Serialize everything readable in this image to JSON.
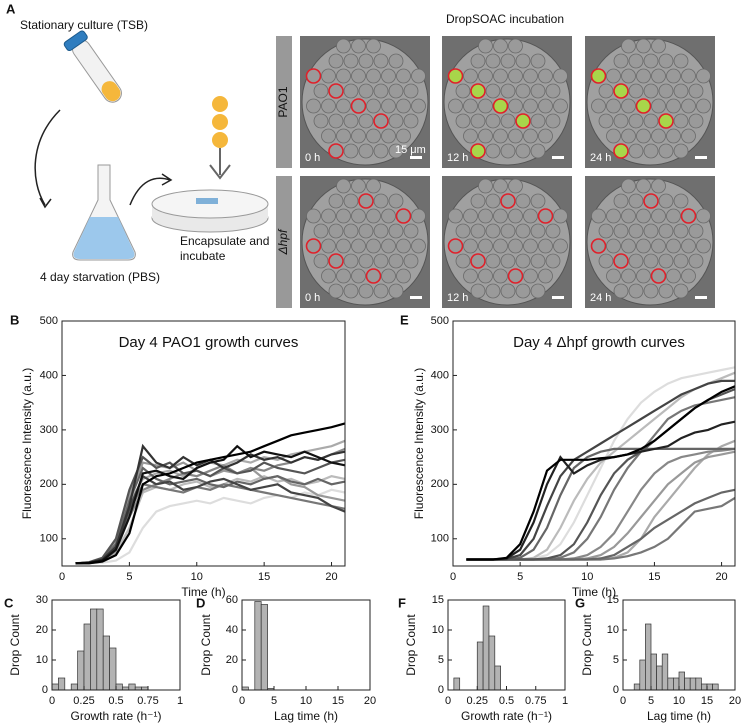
{
  "figure": {
    "panel_a": "A",
    "tube_label": "Stationary culture (TSB)",
    "flask_label": "4 day starvation (PBS)",
    "dish_label_1": "Encapsulate and",
    "dish_label_2": "incubate",
    "micrograph_title": "DropSOAC incubation",
    "rows": [
      "PAO1",
      "Δhpf"
    ],
    "times": [
      "0 h",
      "12 h",
      "24 h"
    ],
    "scale_bar": "15 μm"
  },
  "chart_data": [
    {
      "type": "line",
      "panel": "B",
      "title": "Day 4 PAO1 growth curves",
      "xlabel": "Time (h)",
      "ylabel": "Fluorescence Intensity (a.u.)",
      "x": [
        1,
        2,
        3,
        4,
        5,
        6,
        7,
        8,
        9,
        10,
        11,
        12,
        13,
        14,
        15,
        16,
        17,
        18,
        19,
        20,
        21
      ],
      "xlim": [
        0,
        21
      ],
      "xticks": [
        0,
        5,
        10,
        15,
        20
      ],
      "ylim": [
        50,
        500
      ],
      "yticks": [
        100,
        200,
        300,
        400,
        500
      ],
      "series": [
        {
          "color": "#ddd",
          "values": [
            55,
            55,
            56,
            60,
            75,
            120,
            150,
            160,
            165,
            170,
            165,
            175,
            170,
            165,
            175,
            180,
            175,
            185,
            180,
            190,
            185
          ]
        },
        {
          "color": "#bbb",
          "values": [
            55,
            55,
            58,
            75,
            120,
            185,
            195,
            190,
            200,
            205,
            195,
            200,
            210,
            205,
            215,
            205,
            210,
            200,
            205,
            215,
            210
          ]
        },
        {
          "color": "#aaa",
          "values": [
            55,
            56,
            62,
            88,
            165,
            210,
            220,
            225,
            215,
            230,
            240,
            235,
            245,
            240,
            250,
            245,
            255,
            260,
            265,
            270,
            280
          ]
        },
        {
          "color": "#999",
          "values": [
            55,
            56,
            63,
            95,
            180,
            240,
            235,
            230,
            240,
            225,
            215,
            225,
            220,
            230,
            210,
            215,
            200,
            195,
            180,
            175,
            170
          ]
        },
        {
          "color": "#888",
          "values": [
            55,
            55,
            59,
            78,
            140,
            190,
            200,
            210,
            220,
            215,
            225,
            235,
            220,
            230,
            225,
            235,
            240,
            250,
            245,
            255,
            265
          ]
        },
        {
          "color": "#777",
          "values": [
            55,
            56,
            60,
            80,
            150,
            200,
            195,
            190,
            185,
            195,
            190,
            200,
            195,
            190,
            185,
            180,
            175,
            170,
            165,
            160,
            155
          ]
        },
        {
          "color": "#666",
          "values": [
            55,
            56,
            64,
            90,
            170,
            230,
            210,
            200,
            205,
            210,
            200,
            195,
            205,
            200,
            210,
            215,
            205,
            200,
            210,
            200,
            205
          ]
        },
        {
          "color": "#555",
          "values": [
            55,
            57,
            65,
            100,
            190,
            250,
            230,
            240,
            220,
            225,
            215,
            230,
            220,
            225,
            240,
            230,
            225,
            220,
            230,
            240,
            245
          ]
        },
        {
          "color": "#444",
          "values": [
            55,
            56,
            61,
            84,
            155,
            215,
            200,
            205,
            190,
            195,
            205,
            210,
            200,
            190,
            195,
            200,
            185,
            180,
            175,
            160,
            150
          ]
        },
        {
          "color": "#333",
          "values": [
            55,
            56,
            62,
            85,
            160,
            270,
            240,
            230,
            250,
            235,
            245,
            230,
            240,
            255,
            245,
            250,
            240,
            250,
            245,
            255,
            260
          ]
        },
        {
          "color": "#111",
          "values": [
            55,
            56,
            60,
            80,
            140,
            220,
            225,
            215,
            210,
            230,
            240,
            245,
            270,
            250,
            260,
            255,
            250,
            260,
            250,
            240,
            235
          ]
        },
        {
          "color": "#000",
          "values": [
            55,
            55,
            58,
            70,
            110,
            200,
            215,
            220,
            230,
            240,
            245,
            250,
            255,
            260,
            270,
            280,
            290,
            295,
            300,
            305,
            312
          ]
        }
      ]
    },
    {
      "type": "line",
      "panel": "E",
      "title": "Day 4 Δhpf growth curves",
      "xlabel": "Time (h)",
      "ylabel": "Fluorescence Intensity (a.u.)",
      "x": [
        1,
        2,
        3,
        4,
        5,
        6,
        7,
        8,
        9,
        10,
        11,
        12,
        13,
        14,
        15,
        16,
        17,
        18,
        19,
        20,
        21
      ],
      "xlim": [
        0,
        21
      ],
      "xticks": [
        0,
        5,
        10,
        15,
        20
      ],
      "ylim": [
        50,
        500
      ],
      "yticks": [
        100,
        200,
        300,
        400,
        500
      ],
      "series": [
        {
          "color": "#ddd",
          "values": [
            62,
            62,
            62,
            62,
            62,
            64,
            70,
            90,
            130,
            180,
            230,
            280,
            320,
            350,
            370,
            385,
            395,
            400,
            405,
            410,
            415
          ]
        },
        {
          "color": "#bbb",
          "values": [
            62,
            62,
            62,
            62,
            62,
            65,
            80,
            120,
            170,
            210,
            240,
            260,
            280,
            300,
            320,
            340,
            360,
            375,
            385,
            395,
            405
          ]
        },
        {
          "color": "#aaa",
          "values": [
            62,
            62,
            62,
            62,
            62,
            62,
            62,
            62,
            62,
            62,
            62,
            65,
            75,
            100,
            140,
            170,
            200,
            230,
            255,
            270,
            280
          ]
        },
        {
          "color": "#999",
          "values": [
            62,
            62,
            62,
            62,
            62,
            62,
            62,
            62,
            62,
            64,
            70,
            85,
            110,
            140,
            170,
            200,
            220,
            240,
            250,
            255,
            260
          ]
        },
        {
          "color": "#888",
          "values": [
            62,
            62,
            62,
            62,
            62,
            62,
            62,
            62,
            64,
            70,
            85,
            110,
            150,
            190,
            220,
            240,
            250,
            255,
            260,
            262,
            265
          ]
        },
        {
          "color": "#777",
          "values": [
            62,
            62,
            62,
            62,
            62,
            62,
            62,
            65,
            75,
            100,
            140,
            190,
            230,
            260,
            290,
            320,
            335,
            345,
            350,
            355,
            360
          ]
        },
        {
          "color": "#777",
          "values": [
            62,
            62,
            62,
            62,
            62,
            62,
            62,
            62,
            62,
            62,
            62,
            64,
            68,
            75,
            85,
            100,
            125,
            150,
            155,
            160,
            175
          ]
        },
        {
          "color": "#666",
          "values": [
            62,
            62,
            62,
            62,
            62,
            62,
            62,
            62,
            62,
            62,
            64,
            70,
            85,
            100,
            120,
            135,
            150,
            165,
            175,
            185,
            190
          ]
        },
        {
          "color": "#666",
          "values": [
            62,
            62,
            62,
            62,
            65,
            80,
            120,
            180,
            230,
            250,
            260,
            265,
            265,
            265,
            265,
            265,
            265,
            265,
            265,
            265,
            265
          ]
        },
        {
          "color": "#555",
          "values": [
            62,
            62,
            62,
            62,
            62,
            62,
            64,
            70,
            90,
            130,
            180,
            220,
            245,
            260,
            280,
            300,
            320,
            340,
            355,
            365,
            375
          ]
        },
        {
          "color": "#444",
          "values": [
            62,
            62,
            62,
            63,
            70,
            100,
            160,
            215,
            245,
            260,
            275,
            290,
            305,
            320,
            335,
            350,
            365,
            375,
            385,
            390,
            390
          ]
        },
        {
          "color": "#222",
          "values": [
            62,
            62,
            62,
            64,
            80,
            130,
            200,
            250,
            220,
            235,
            245,
            250,
            255,
            260,
            265,
            270,
            285,
            295,
            300,
            310,
            315
          ]
        },
        {
          "color": "#000",
          "values": [
            62,
            62,
            62,
            65,
            90,
            150,
            225,
            245,
            245,
            245,
            248,
            250,
            255,
            265,
            280,
            300,
            320,
            340,
            355,
            370,
            380
          ]
        }
      ]
    },
    {
      "type": "histogram",
      "panel": "C",
      "xlabel": "Growth rate (h⁻¹)",
      "ylabel": "Drop Count",
      "color": "#b3b3b3",
      "bins": [
        0,
        0.05,
        0.1,
        0.15,
        0.2,
        0.25,
        0.3,
        0.35,
        0.4,
        0.45,
        0.5,
        0.55,
        0.6,
        0.65,
        0.7,
        0.75
      ],
      "values": [
        2,
        4,
        0,
        2,
        13,
        22,
        27,
        27,
        18,
        14,
        2,
        1,
        2,
        1,
        1
      ],
      "xlim": [
        0,
        1
      ],
      "xticks": [
        0,
        0.25,
        0.5,
        0.75,
        1
      ],
      "ylim": [
        0,
        30
      ],
      "yticks": [
        0,
        10,
        20,
        30
      ]
    },
    {
      "type": "histogram",
      "panel": "D",
      "xlabel": "Lag time (h)",
      "ylabel": "Drop Count",
      "color": "#b3b3b3",
      "bins": [
        0,
        1,
        2,
        3,
        4,
        5
      ],
      "values": [
        2,
        0,
        59,
        57,
        1
      ],
      "xlim": [
        0,
        20
      ],
      "xticks": [
        0,
        5,
        10,
        15,
        20
      ],
      "ylim": [
        0,
        60
      ],
      "yticks": [
        0,
        20,
        40,
        60
      ]
    },
    {
      "type": "histogram",
      "panel": "F",
      "xlabel": "Growth rate (h⁻¹)",
      "ylabel": "Drop Count",
      "color": "#b3b3b3",
      "bins": [
        0.05,
        0.1,
        0.15,
        0.2,
        0.25,
        0.3,
        0.35,
        0.4,
        0.45
      ],
      "values": [
        2,
        0,
        0,
        0,
        8,
        14,
        9,
        4
      ],
      "xlim": [
        0,
        1
      ],
      "xticks": [
        0,
        0.25,
        0.5,
        0.75,
        1
      ],
      "ylim": [
        0,
        15
      ],
      "yticks": [
        0,
        5,
        10,
        15
      ]
    },
    {
      "type": "histogram",
      "panel": "G",
      "xlabel": "Lag time (h)",
      "ylabel": "Drop Count",
      "color": "#b3b3b3",
      "bins": [
        2,
        3,
        4,
        5,
        6,
        7,
        8,
        9,
        10,
        11,
        12,
        13,
        14,
        15,
        16,
        17
      ],
      "values": [
        1,
        5,
        11,
        6,
        4,
        6,
        2,
        2,
        3,
        2,
        2,
        2,
        1,
        1,
        1
      ],
      "xlim": [
        0,
        20
      ],
      "xticks": [
        0,
        5,
        10,
        15,
        20
      ],
      "ylim": [
        0,
        15
      ],
      "yticks": [
        0,
        5,
        10,
        15
      ]
    }
  ]
}
